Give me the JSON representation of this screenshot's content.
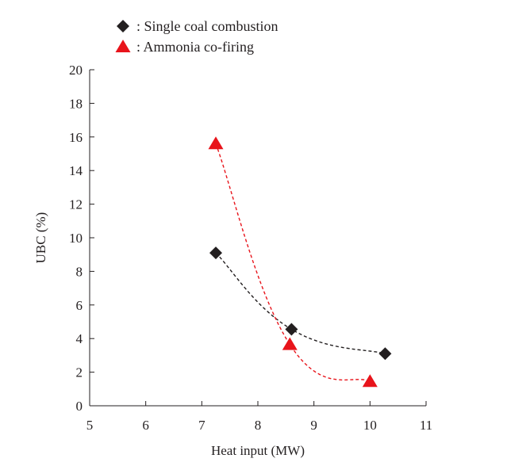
{
  "chart_data": {
    "type": "scatter",
    "xlabel": "Heat input (MW)",
    "ylabel": "UBC (%)",
    "xlim": [
      5,
      11
    ],
    "ylim": [
      0,
      20
    ],
    "xticks": [
      "5",
      "6",
      "7",
      "8",
      "9",
      "10",
      "11"
    ],
    "yticks": [
      "0",
      "2",
      "4",
      "6",
      "8",
      "10",
      "12",
      "14",
      "16",
      "18",
      "20"
    ],
    "grid": false,
    "legend_position": "top-left",
    "series": [
      {
        "name": ": Single coal combustion",
        "marker": "diamond",
        "color": "#231f20",
        "trendline": "dashed",
        "x": [
          7.25,
          8.6,
          10.27
        ],
        "y": [
          9.1,
          4.55,
          3.1
        ]
      },
      {
        "name": ": Ammonia co-firing",
        "marker": "triangle",
        "color": "#e8141b",
        "trendline": "dashed",
        "x": [
          7.25,
          8.57,
          10.0
        ],
        "y": [
          15.6,
          3.65,
          1.45
        ]
      }
    ]
  }
}
